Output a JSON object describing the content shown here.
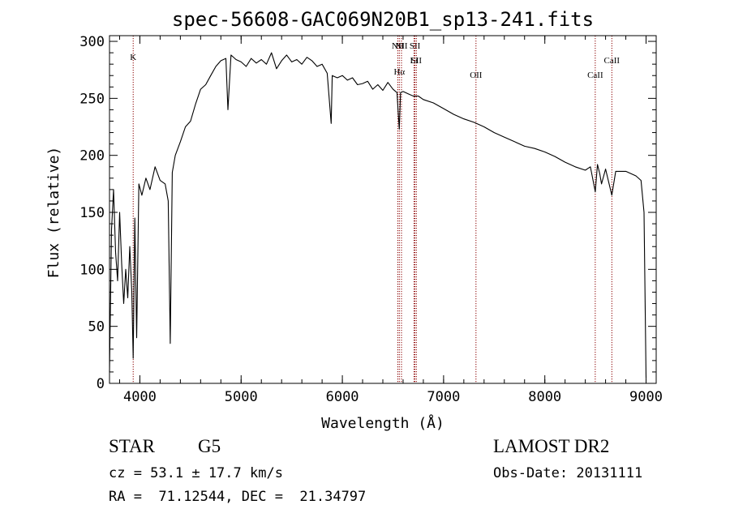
{
  "chart_data": {
    "type": "line",
    "title": "spec-56608-GAC069N20B1_sp13-241.fits",
    "xlabel": "Wavelength (Å)",
    "ylabel": "Flux (relative)",
    "xlim": [
      3700,
      9100
    ],
    "ylim": [
      0,
      305
    ],
    "xticks": [
      4000,
      5000,
      6000,
      7000,
      8000,
      9000
    ],
    "yticks": [
      0,
      50,
      100,
      150,
      200,
      250,
      300
    ],
    "grid": false,
    "line_color": "#000000",
    "marker_color": "#8b0000",
    "spectral_lines": [
      {
        "label": "K",
        "x": 3934
      },
      {
        "label": "NII",
        "x": 6548
      },
      {
        "label": "Hα",
        "x": 6563
      },
      {
        "label": "NII",
        "x": 6584
      },
      {
        "label": "SII",
        "x": 6717
      },
      {
        "label": "SII",
        "x": 6731
      },
      {
        "label": "Li",
        "x": 6708
      },
      {
        "label": "OII",
        "x": 7320
      },
      {
        "label": "CaII",
        "x": 8498
      },
      {
        "label": "CaII",
        "x": 8662
      }
    ],
    "series": [
      {
        "x": [
          3700,
          3720,
          3740,
          3760,
          3780,
          3800,
          3820,
          3840,
          3860,
          3880,
          3900,
          3920,
          3934,
          3950,
          3968,
          3990,
          4020,
          4060,
          4100,
          4150,
          4200,
          4250,
          4280,
          4300,
          4320,
          4350,
          4400,
          4450,
          4500,
          4550,
          4600,
          4650,
          4700,
          4750,
          4800,
          4850,
          4870,
          4900,
          4950,
          5000,
          5050,
          5100,
          5150,
          5200,
          5250,
          5300,
          5350,
          5400,
          5450,
          5500,
          5550,
          5600,
          5650,
          5700,
          5750,
          5800,
          5850,
          5890,
          5900,
          5950,
          6000,
          6050,
          6100,
          6150,
          6200,
          6250,
          6300,
          6350,
          6400,
          6450,
          6500,
          6540,
          6550,
          6563,
          6575,
          6600,
          6650,
          6700,
          6750,
          6800,
          6900,
          7000,
          7100,
          7200,
          7300,
          7400,
          7500,
          7600,
          7700,
          7800,
          7900,
          8000,
          8100,
          8200,
          8300,
          8400,
          8450,
          8498,
          8520,
          8542,
          8560,
          8600,
          8662,
          8700,
          8800,
          8900,
          8950,
          8980,
          9000
        ],
        "values": [
          10,
          135,
          170,
          115,
          90,
          150,
          105,
          70,
          100,
          75,
          120,
          80,
          22,
          145,
          40,
          175,
          165,
          180,
          170,
          190,
          178,
          175,
          160,
          35,
          185,
          200,
          212,
          225,
          230,
          245,
          258,
          262,
          270,
          278,
          283,
          285,
          240,
          288,
          284,
          282,
          278,
          285,
          281,
          284,
          280,
          290,
          276,
          283,
          288,
          282,
          284,
          280,
          286,
          283,
          278,
          280,
          272,
          228,
          270,
          268,
          270,
          266,
          268,
          262,
          263,
          265,
          258,
          262,
          257,
          264,
          258,
          255,
          240,
          223,
          255,
          256,
          254,
          252,
          252,
          249,
          246,
          241,
          236,
          232,
          229,
          225,
          220,
          216,
          212,
          208,
          206,
          203,
          199,
          194,
          190,
          187,
          190,
          168,
          192,
          184,
          175,
          188,
          165,
          186,
          186,
          182,
          178,
          150,
          5
        ]
      }
    ]
  },
  "object_class": "STAR",
  "subclass": "G5",
  "survey": "LAMOST DR2",
  "redshift_text": "cz = 53.1 ± 17.7 km/s",
  "obs_date_text": "Obs-Date: 20131111",
  "coords_text": "RA =  71.12544, DEC =  21.34797"
}
